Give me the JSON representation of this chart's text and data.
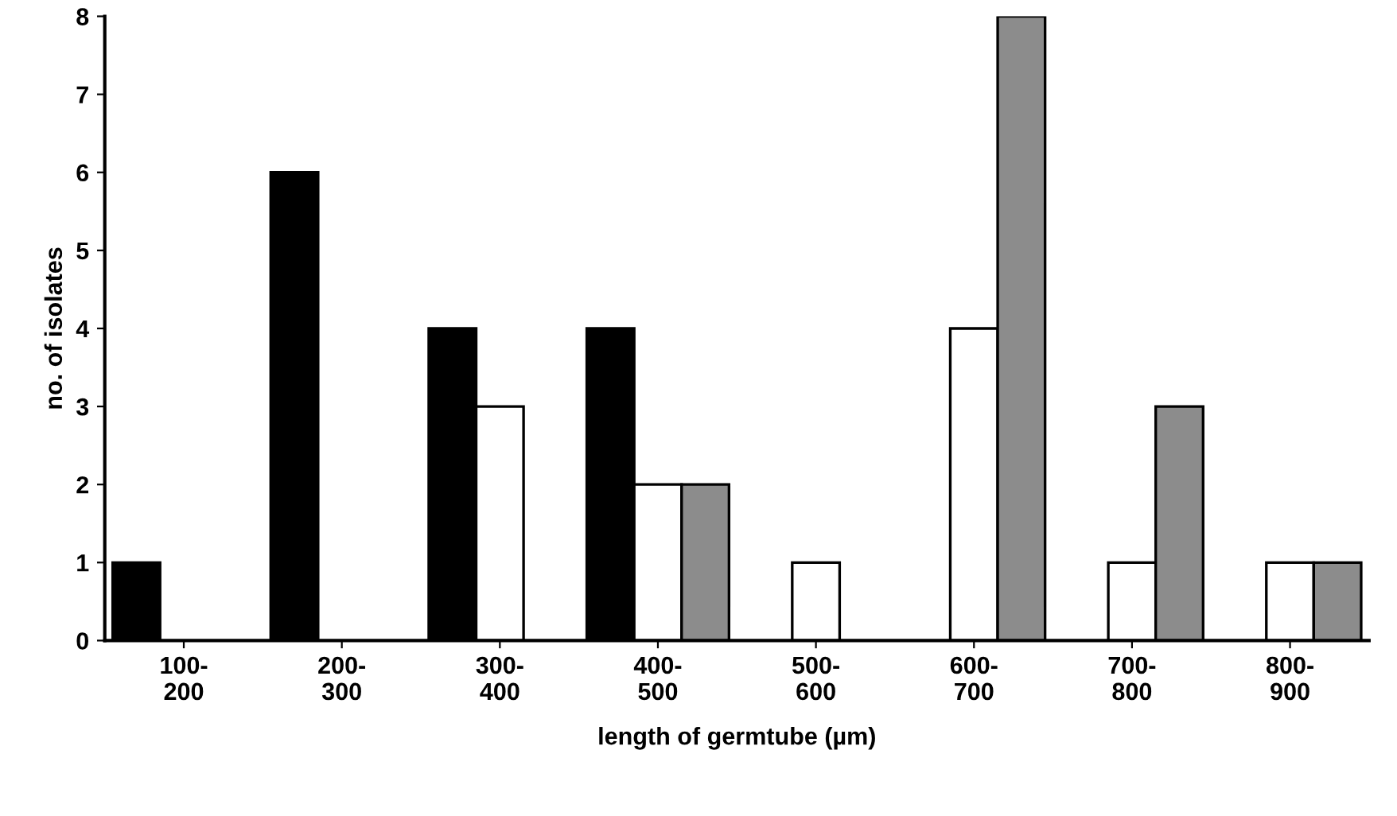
{
  "chart_data": {
    "type": "bar",
    "xlabel": "length of germtube (µm)",
    "ylabel": "no. of isolates",
    "categories": [
      "100-\n200",
      "200-\n300",
      "300-\n400",
      "400-\n500",
      "500-\n600",
      "600-\n700",
      "700-\n800",
      "800-\n900"
    ],
    "series": [
      {
        "color": "#000000",
        "values": [
          1,
          6,
          4,
          4,
          0,
          0,
          0,
          0
        ]
      },
      {
        "color": "#ffffff",
        "values": [
          0,
          0,
          3,
          2,
          1,
          4,
          1,
          1
        ]
      },
      {
        "color": "#8c8c8c",
        "values": [
          0,
          0,
          0,
          2,
          0,
          8,
          3,
          1
        ]
      }
    ],
    "ylim": [
      0,
      8
    ],
    "yticks": [
      0,
      1,
      2,
      3,
      4,
      5,
      6,
      7,
      8
    ],
    "grid": false,
    "legend": false
  }
}
